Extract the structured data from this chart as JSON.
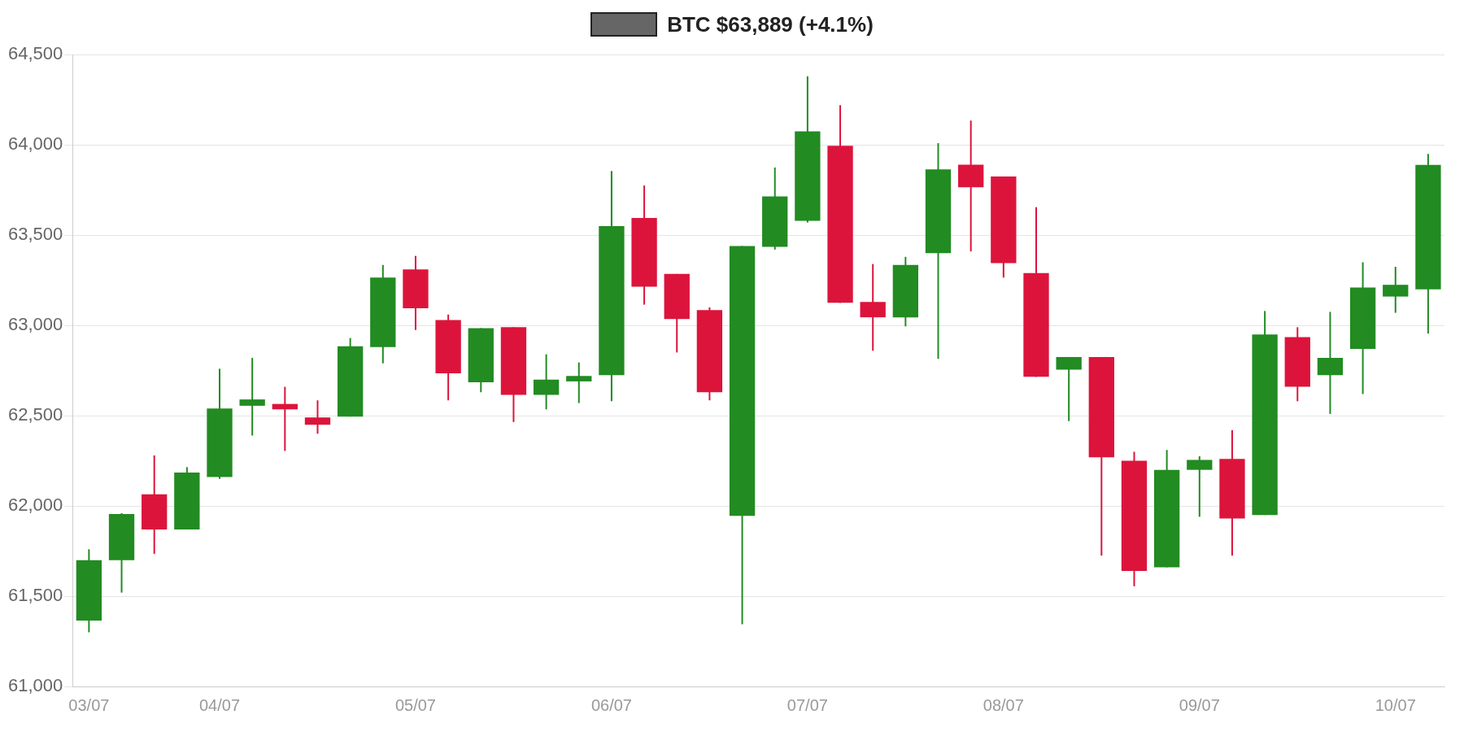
{
  "chart_data": {
    "type": "candlestick",
    "categories": [
      "03/07",
      null,
      null,
      null,
      "04/07",
      null,
      null,
      null,
      null,
      null,
      "05/07",
      null,
      null,
      null,
      null,
      null,
      "06/07",
      null,
      null,
      null,
      null,
      null,
      "07/07",
      null,
      null,
      null,
      null,
      null,
      "08/07",
      null,
      null,
      null,
      null,
      null,
      "09/07",
      null,
      null,
      null,
      null,
      null,
      "10/07",
      null
    ],
    "ylim": [
      61000,
      64500
    ],
    "yticks": [
      {
        "value": 61000,
        "label": "61,000"
      },
      {
        "value": 61500,
        "label": "61,500"
      },
      {
        "value": 62000,
        "label": "62,000"
      },
      {
        "value": 62500,
        "label": "62,500"
      },
      {
        "value": 63000,
        "label": "63,000"
      },
      {
        "value": 63500,
        "label": "63,500"
      },
      {
        "value": 64000,
        "label": "64,000"
      },
      {
        "value": 64500,
        "label": "64,500"
      }
    ],
    "grid": "y",
    "legend": "top",
    "series": [
      {
        "name": "BTC $63,889 (+4.1%)",
        "color": "#666666",
        "ohlc": [
          [
            61365,
            61760,
            61300,
            61700
          ],
          [
            61700,
            61960,
            61520,
            61955
          ],
          [
            62065,
            62280,
            61735,
            61870
          ],
          [
            61870,
            62215,
            61870,
            62185
          ],
          [
            62160,
            62760,
            62150,
            62540
          ],
          [
            62555,
            62820,
            62390,
            62590
          ],
          [
            62565,
            62660,
            62305,
            62535
          ],
          [
            62490,
            62585,
            62400,
            62450
          ],
          [
            62495,
            62930,
            62495,
            62885
          ],
          [
            62880,
            63335,
            62790,
            63265
          ],
          [
            63310,
            63385,
            62975,
            63095
          ],
          [
            63030,
            63060,
            62585,
            62735
          ],
          [
            62685,
            62985,
            62630,
            62985
          ],
          [
            62990,
            62990,
            62465,
            62615
          ],
          [
            62615,
            62840,
            62535,
            62700
          ],
          [
            62690,
            62795,
            62570,
            62720
          ],
          [
            62725,
            63855,
            62580,
            63550
          ],
          [
            63595,
            63775,
            63115,
            63215
          ],
          [
            63285,
            63285,
            62850,
            63035
          ],
          [
            63085,
            63100,
            62585,
            62630
          ],
          [
            61945,
            63440,
            61345,
            63440
          ],
          [
            63435,
            63875,
            63420,
            63715
          ],
          [
            63580,
            64380,
            63570,
            64075
          ],
          [
            63995,
            64220,
            63125,
            63125
          ],
          [
            63130,
            63340,
            62860,
            63045
          ],
          [
            63045,
            63380,
            62995,
            63335
          ],
          [
            63400,
            64010,
            62815,
            63865
          ],
          [
            63890,
            64135,
            63410,
            63765
          ],
          [
            63825,
            63825,
            63265,
            63345
          ],
          [
            63290,
            63655,
            62715,
            62715
          ],
          [
            62755,
            62825,
            62470,
            62825
          ],
          [
            62825,
            62825,
            61725,
            62270
          ],
          [
            62250,
            62300,
            61555,
            61640
          ],
          [
            61660,
            62310,
            61660,
            62200
          ],
          [
            62200,
            62275,
            61940,
            62255
          ],
          [
            62260,
            62420,
            61725,
            61930
          ],
          [
            61950,
            63080,
            61950,
            62950
          ],
          [
            62935,
            62990,
            62580,
            62660
          ],
          [
            62725,
            63075,
            62510,
            62820
          ],
          [
            62870,
            63350,
            62620,
            63210
          ],
          [
            63160,
            63325,
            63070,
            63225
          ],
          [
            63200,
            63950,
            62955,
            63889
          ]
        ],
        "colors": [
          "#228b22",
          "#228b22",
          "#dc143c",
          "#228b22",
          "#228b22",
          "#228b22",
          "#dc143c",
          "#dc143c",
          "#228b22",
          "#228b22",
          "#dc143c",
          "#dc143c",
          "#228b22",
          "#dc143c",
          "#228b22",
          "#228b22",
          "#228b22",
          "#dc143c",
          "#dc143c",
          "#dc143c",
          "#228b22",
          "#228b22",
          "#228b22",
          "#dc143c",
          "#dc143c",
          "#228b22",
          "#228b22",
          "#dc143c",
          "#dc143c",
          "#dc143c",
          "#228b22",
          "#dc143c",
          "#dc143c",
          "#228b22",
          "#228b22",
          "#dc143c",
          "#228b22",
          "#dc143c",
          "#228b22",
          "#228b22",
          "#228b22",
          "#228b22"
        ]
      }
    ]
  }
}
